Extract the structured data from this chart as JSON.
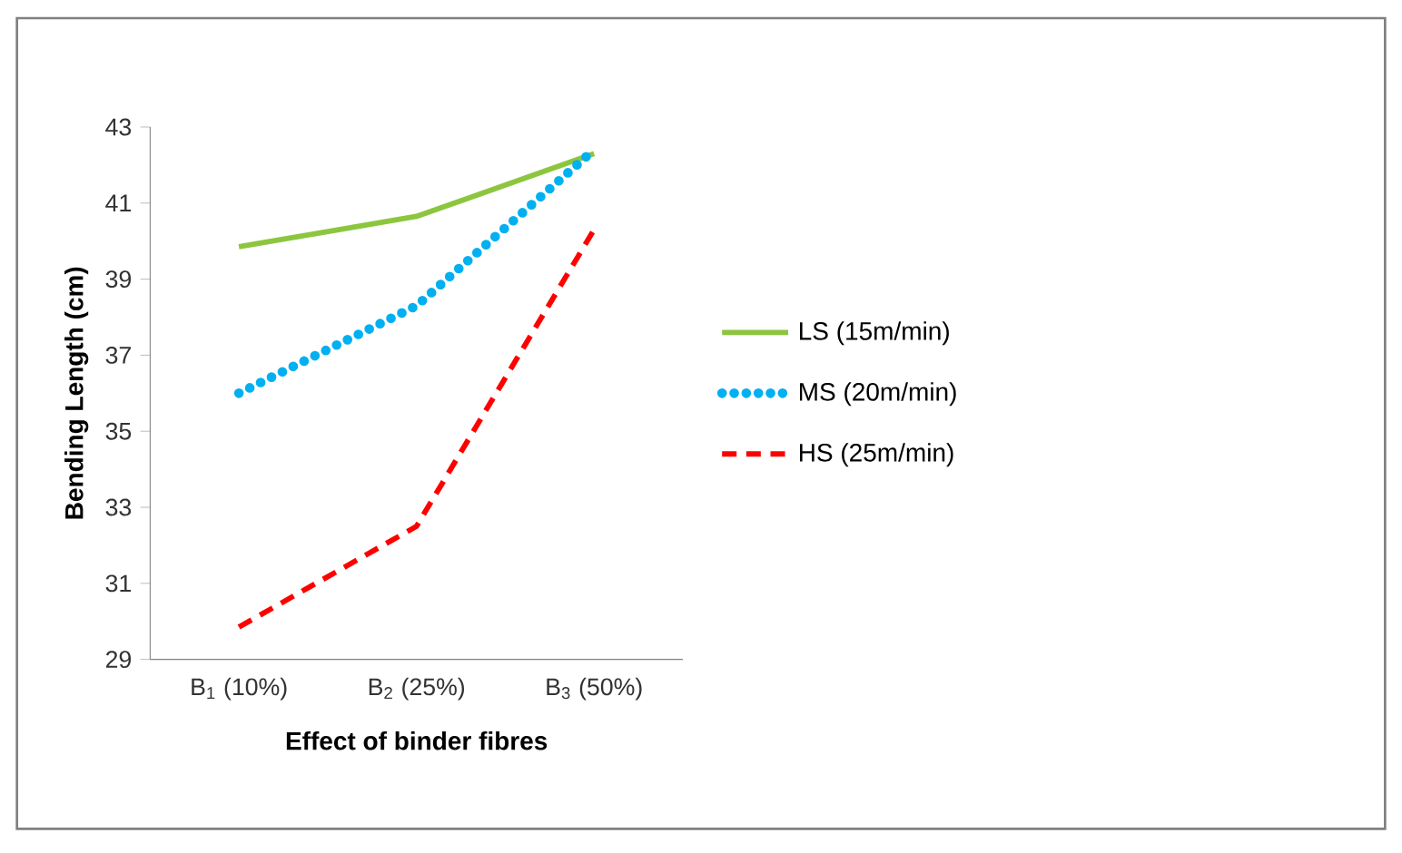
{
  "chart_data": {
    "type": "line",
    "xlabel": "Effect of binder fibres",
    "ylabel": "Bending Length (cm)",
    "categories": [
      "B$_{1}$ (10%)",
      "B$_{2}$ (25%)",
      "B$_{3}$ (50%)"
    ],
    "series": [
      {
        "name": "LS (15m/min)",
        "color": "#8cc63f",
        "line_style": "solid",
        "values": [
          39.85,
          40.65,
          42.3
        ]
      },
      {
        "name": "MS (20m/min)",
        "color": "#00b0f0",
        "line_style": "dotted",
        "values": [
          36.0,
          38.3,
          42.4
        ]
      },
      {
        "name": "HS (25m/min)",
        "color": "#ff0000",
        "line_style": "dashed",
        "values": [
          29.85,
          32.5,
          40.3
        ]
      }
    ],
    "ylim": [
      29,
      43
    ],
    "yticks": [
      29,
      31,
      33,
      35,
      37,
      39,
      41,
      43
    ],
    "grid": false,
    "legend": "right",
    "marker": "none"
  }
}
